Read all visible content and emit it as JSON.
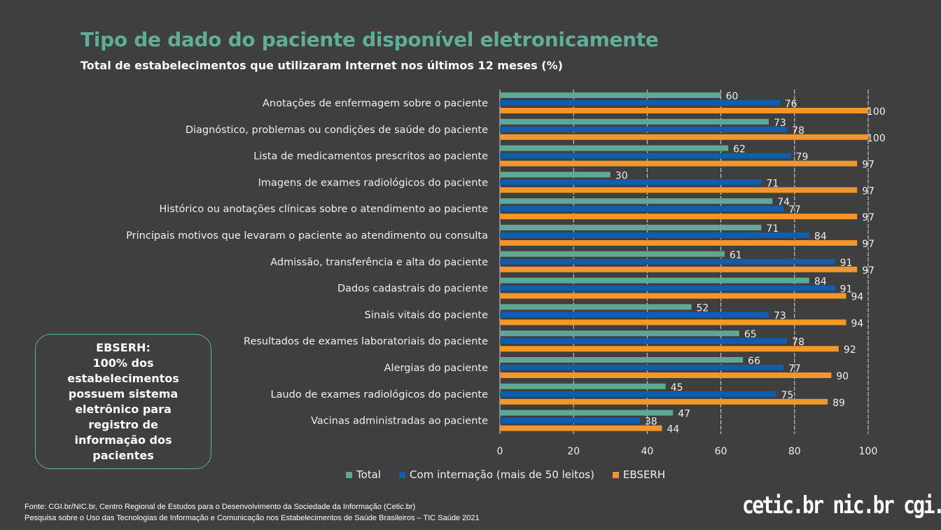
{
  "title": "Tipo de dado do paciente disponível eletronicamente",
  "subtitle": "Total de estabelecimentos que utilizaram Internet nos últimos 12 meses (%)",
  "callout": {
    "heading": "EBSERH:",
    "body": "100% dos estabelecimentos possuem sistema eletrônico para registro de informação dos pacientes"
  },
  "source": {
    "line1": "Fonte: CGI.br/NIC.br, Centro Regional de Estudos para o Desenvolvimento da Sociedade da Informação (Cetic.br)",
    "line2": "Pesquisa sobre o Uso das Tecnologias de Informação e Comunicação nos Estabelecimentos de Saúde Brasileiros – TIC Saúde 2021"
  },
  "logos": [
    "cetic.br",
    "nic.br",
    "cgi.br"
  ],
  "chart_data": {
    "type": "bar",
    "orientation": "horizontal",
    "title": "Tipo de dado do paciente disponível eletronicamente",
    "subtitle": "Total de estabelecimentos que utilizaram Internet nos últimos 12 meses (%)",
    "categories": [
      "Anotações de enfermagem sobre o paciente",
      "Diagnóstico, problemas ou condições de saúde do paciente",
      "Lista de medicamentos prescritos ao paciente",
      "Imagens de exames radiológicos do paciente",
      "Histórico ou anotações clínicas sobre o atendimento ao paciente",
      "Principais motivos que levaram o paciente ao atendimento ou consulta",
      "Admissão, transferência e alta do paciente",
      "Dados cadastrais do paciente",
      "Sinais vitais do paciente",
      "Resultados de exames laboratoriais do paciente",
      "Alergias do paciente",
      "Laudo de exames radiológicos do paciente",
      "Vacinas administradas ao paciente"
    ],
    "series": [
      {
        "name": "Total",
        "color": "#5fa896",
        "values": [
          60,
          73,
          62,
          30,
          74,
          71,
          61,
          84,
          52,
          65,
          66,
          45,
          47
        ]
      },
      {
        "name": "Com internação (mais de 50 leitos)",
        "color": "#0f5eae",
        "values": [
          76,
          78,
          79,
          71,
          77,
          84,
          91,
          91,
          73,
          78,
          77,
          75,
          38
        ]
      },
      {
        "name": "EBSERH",
        "color": "#f5962a",
        "values": [
          100,
          100,
          97,
          97,
          97,
          97,
          97,
          94,
          94,
          92,
          90,
          89,
          44
        ]
      }
    ],
    "xlim": [
      0,
      100
    ],
    "xticks": [
      0,
      20,
      40,
      60,
      80,
      100
    ],
    "grid": true,
    "legend_position": "bottom"
  }
}
